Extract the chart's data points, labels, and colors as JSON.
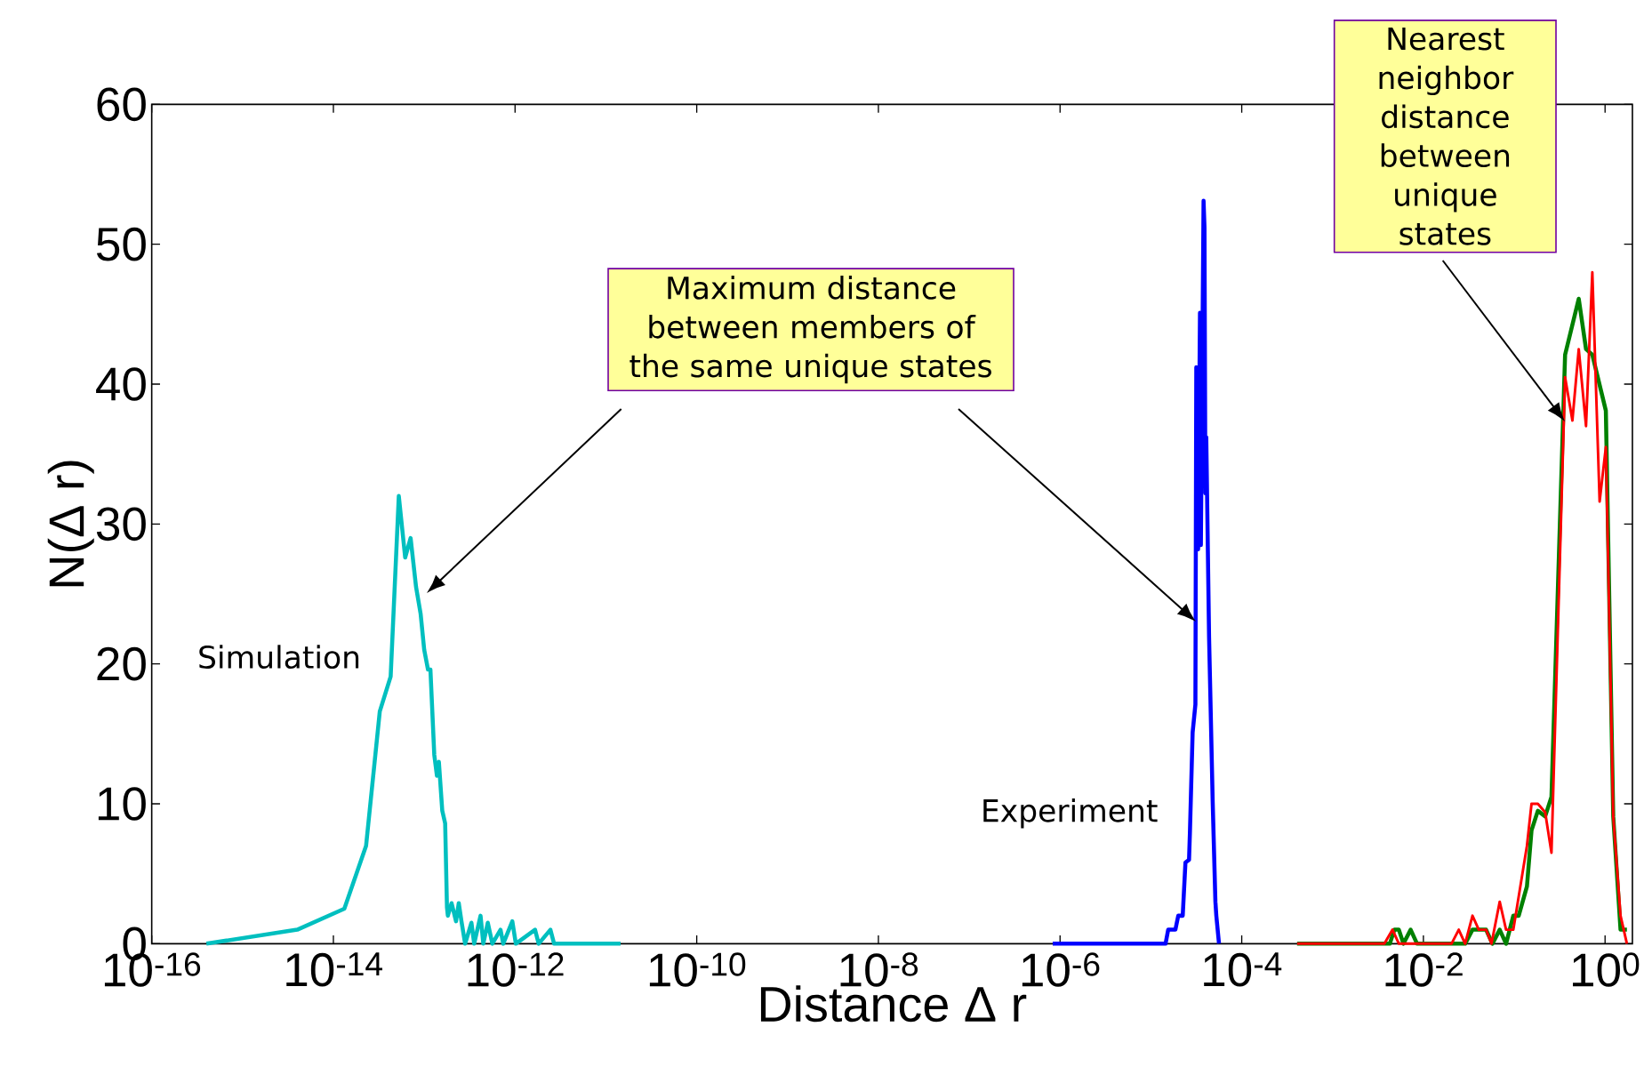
{
  "chart_data": {
    "type": "line",
    "xlabel": "Distance Δ r",
    "ylabel": "N(Δ r)",
    "log": "x",
    "xlim": [
      1e-16,
      2
    ],
    "ylim": [
      0,
      60
    ],
    "xticks": [
      {
        "value": 1e-16,
        "label": "10$^{-16}$"
      },
      {
        "value": 1e-14,
        "label": "10$^{-14}$"
      },
      {
        "value": 1e-12,
        "label": "10$^{-12}$"
      },
      {
        "value": 1e-10,
        "label": "10$^{-10}$"
      },
      {
        "value": 1e-08,
        "label": "10$^{-8}$"
      },
      {
        "value": 1e-06,
        "label": "10$^{-6}$"
      },
      {
        "value": 0.0001,
        "label": "10$^{-4}$"
      },
      {
        "value": 0.01,
        "label": "10$^{-2}$"
      },
      {
        "value": 1,
        "label": "10$^{0}$"
      }
    ],
    "yticks": [
      0,
      10,
      20,
      30,
      40,
      50,
      60
    ],
    "annotations": [
      "Simulation",
      "Experiment",
      "Maximum distance between members of the same unique states",
      "Nearest neighbor distance between unique states"
    ],
    "series": [
      {
        "color": "#00bfbf",
        "x": [
          4e-16,
          4e-15,
          1.32e-14,
          2.29e-14,
          3.24e-14,
          4.27e-14,
          5.25e-14,
          6.17e-14,
          7.08e-14,
          8.13e-14,
          9.12e-14,
          1e-13,
          1.1e-13,
          1.17e-13,
          1.29e-13,
          1.38e-13,
          1.45e-13,
          1.58e-13,
          1.7e-13,
          1.78e-13,
          1.82e-13,
          2e-13,
          2.24e-13,
          2.4e-13,
          2.57e-13,
          2.82e-13,
          3.31e-13,
          3.55e-13,
          4.17e-13,
          4.47e-13,
          5.01e-13,
          5.62e-13,
          6.92e-13,
          7.41e-13,
          9.33e-13,
          1.02e-12,
          1.66e-12,
          1.82e-12,
          2.45e-12,
          2.69e-12,
          1.45e-11
        ],
        "values": [
          0,
          1,
          2.5,
          7,
          16.6,
          19.1,
          32,
          27.6,
          29,
          25.5,
          23.6,
          21,
          19.6,
          19.6,
          13.5,
          12,
          13,
          9.5,
          8.6,
          2.6,
          2,
          2.9,
          1.6,
          2.9,
          1.6,
          0,
          1.5,
          0,
          2,
          0,
          1.5,
          0,
          1,
          0,
          1.6,
          0,
          1,
          0,
          1,
          0,
          0
        ]
      },
      {
        "color": "#0000ff",
        "x": [
          8.3e-07,
          1.45e-05,
          1.55e-05,
          1.86e-05,
          2e-05,
          2.24e-05,
          2.4e-05,
          2.63e-05,
          2.69e-05,
          2.88e-05,
          3.09e-05,
          3.16e-05,
          3.31e-05,
          3.47e-05,
          3.55e-05,
          3.8e-05,
          3.89e-05,
          3.98e-05,
          4.07e-05,
          4.37e-05,
          4.79e-05,
          5.13e-05,
          5.25e-05,
          5.62e-05
        ],
        "values": [
          0,
          0,
          1,
          1,
          2,
          2,
          5.8,
          6,
          8,
          15.1,
          17.1,
          41.2,
          28.2,
          45.1,
          28.5,
          53.1,
          51.2,
          32.2,
          36.2,
          21.9,
          10.1,
          3,
          2,
          0
        ]
      },
      {
        "color": "#008000",
        "x": [
          0.000407,
          0.00427,
          0.00479,
          0.00537,
          0.00603,
          0.00724,
          0.00851,
          0.0288,
          0.0347,
          0.049,
          0.0575,
          0.0692,
          0.0813,
          0.0977,
          0.112,
          0.138,
          0.155,
          0.182,
          0.219,
          0.257,
          0.363,
          0.513,
          0.617,
          0.724,
          1.02,
          1.23,
          1.48,
          1.74
        ],
        "values": [
          0,
          0,
          1,
          1,
          0,
          1,
          0,
          0,
          1,
          1,
          0,
          1,
          0,
          2,
          2,
          4.1,
          8.1,
          9.5,
          9.1,
          10.5,
          42.1,
          46.1,
          42.5,
          42.1,
          38.1,
          9.1,
          1,
          1
        ]
      },
      {
        "color": "#ff0000",
        "x": [
          0.000407,
          0.00372,
          0.00457,
          0.00537,
          0.0204,
          0.0245,
          0.0288,
          0.0347,
          0.0407,
          0.049,
          0.0562,
          0.0692,
          0.0813,
          0.0977,
          0.138,
          0.155,
          0.182,
          0.219,
          0.257,
          0.363,
          0.437,
          0.513,
          0.617,
          0.724,
          0.871,
          1.02,
          1.23,
          1.48,
          1.74
        ],
        "values": [
          0,
          0,
          1,
          0,
          0,
          1,
          0,
          2,
          1,
          1,
          0,
          3,
          1,
          1,
          7,
          10,
          10,
          9.4,
          6.5,
          40.5,
          37.4,
          42.5,
          37,
          48,
          31.6,
          35.5,
          9.1,
          2,
          0
        ]
      }
    ]
  }
}
